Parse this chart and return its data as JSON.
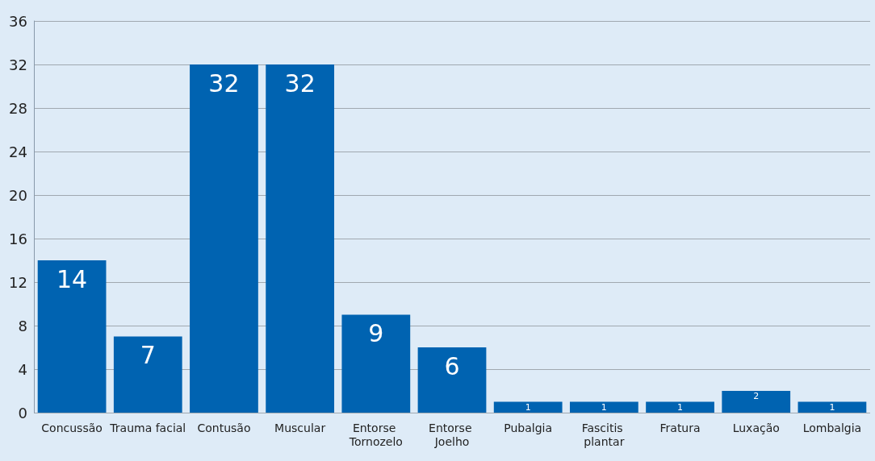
{
  "chart_data": {
    "type": "bar",
    "categories": [
      "Concussão",
      "Trauma facial",
      "Contusão",
      "Muscular",
      "Entorse Tornozelo",
      "Entorse Joelho",
      "Pubalgia",
      "Fascitis plantar",
      "Fratura",
      "Luxação",
      "Lombalgia"
    ],
    "values": [
      14,
      7,
      32,
      32,
      9,
      6,
      1,
      1,
      1,
      2,
      1
    ],
    "color": "#0063b1",
    "ylim": [
      0,
      36
    ],
    "yticks": [
      0,
      4,
      8,
      12,
      16,
      20,
      24,
      28,
      32,
      36
    ],
    "grid": "y",
    "data_labels": true
  }
}
